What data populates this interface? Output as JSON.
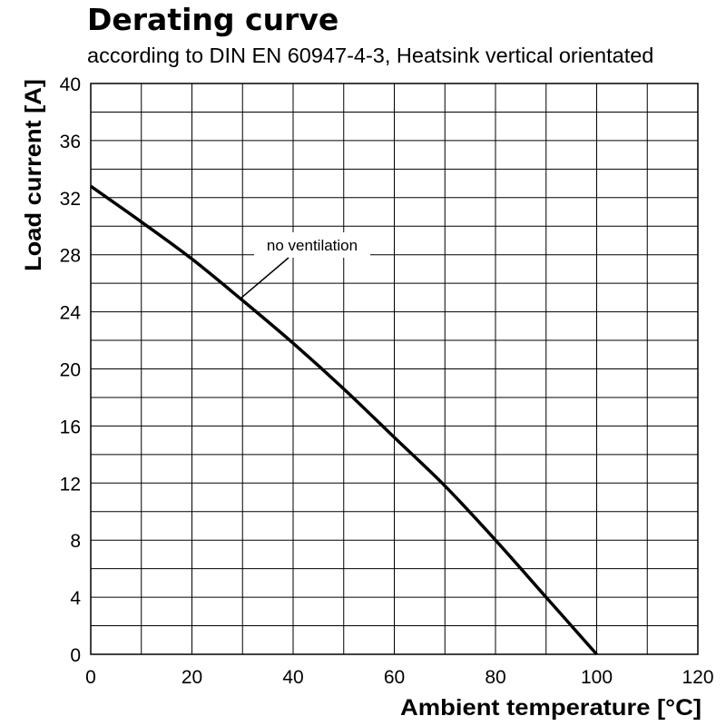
{
  "chart_data": {
    "type": "line",
    "title": "Derating curve",
    "subtitle": "according to DIN EN 60947-4-3, Heatsink vertical orientated",
    "xlabel": "Ambient temperature [°C]",
    "ylabel": "Load current [A]",
    "xlim": [
      0,
      120
    ],
    "ylim": [
      0,
      40
    ],
    "x_ticks": [
      0,
      20,
      40,
      60,
      80,
      100,
      120
    ],
    "y_ticks": [
      0,
      4,
      8,
      12,
      16,
      20,
      24,
      28,
      32,
      36,
      40
    ],
    "grid": true,
    "series": [
      {
        "name": "no ventilation",
        "x": [
          0,
          10,
          20,
          30,
          40,
          50,
          60,
          70,
          80,
          90,
          100
        ],
        "y": [
          32.8,
          30.3,
          27.7,
          24.8,
          21.8,
          18.6,
          15.2,
          11.8,
          8.0,
          4.0,
          0
        ]
      }
    ],
    "annotations": [
      {
        "text": "no ventilation",
        "series": "no ventilation"
      }
    ]
  }
}
